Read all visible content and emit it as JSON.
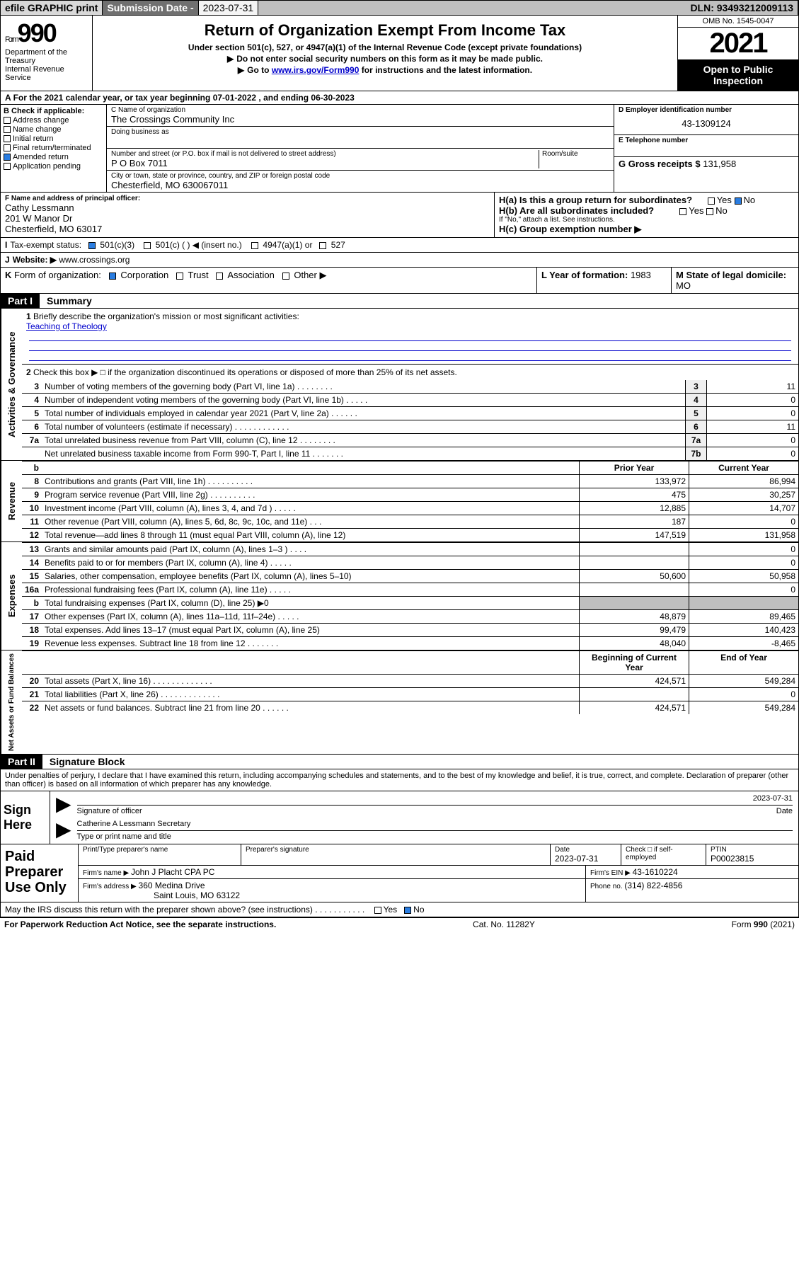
{
  "toolbar": {
    "efile": "efile GRAPHIC print",
    "subdate_label": "Submission Date - ",
    "subdate": "2023-07-31",
    "dln": "DLN: 93493212009113"
  },
  "header": {
    "form_word": "Form",
    "form_num": "990",
    "dept": "Department of the Treasury",
    "irs": "Internal Revenue Service",
    "title": "Return of Organization Exempt From Income Tax",
    "sub1": "Under section 501(c), 527, or 4947(a)(1) of the Internal Revenue Code (except private foundations)",
    "sub2": "Do not enter social security numbers on this form as it may be made public.",
    "sub3a": "Go to ",
    "sub3b": "www.irs.gov/Form990",
    "sub3c": " for instructions and the latest information.",
    "omb": "OMB No. 1545-0047",
    "year": "2021",
    "open": "Open to Public Inspection"
  },
  "period": {
    "a": "A",
    "text": " For the 2021 calendar year, or tax year beginning ",
    "begin": "07-01-2022",
    "mid": " , and ending ",
    "end": "06-30-2023"
  },
  "boxB": {
    "label": "B Check if applicable:",
    "items": [
      "Address change",
      "Name change",
      "Initial return",
      "Final return/terminated",
      "Amended return",
      "Application pending"
    ],
    "checked_index": 4
  },
  "boxC": {
    "label": "C Name of organization",
    "name": "The Crossings Community Inc",
    "dba_label": "Doing business as",
    "addr_label": "Number and street (or P.O. box if mail is not delivered to street address)",
    "room_label": "Room/suite",
    "addr": "P O Box 7011",
    "city_label": "City or town, state or province, country, and ZIP or foreign postal code",
    "city": "Chesterfield, MO  630067011"
  },
  "boxD": {
    "label": "D Employer identification number",
    "val": "43-1309124"
  },
  "boxE": {
    "label": "E Telephone number",
    "val": ""
  },
  "boxG": {
    "label": "G Gross receipts $ ",
    "val": "131,958"
  },
  "boxF": {
    "label": "F  Name and address of principal officer:",
    "name": "Cathy Lessmann",
    "addr1": "201 W Manor Dr",
    "addr2": "Chesterfield, MO  63017"
  },
  "boxH": {
    "a": "H(a)  Is this a group return for subordinates?",
    "b": "H(b)  Are all subordinates included?",
    "note": "If \"No,\" attach a list. See instructions.",
    "c": "H(c)  Group exemption number ▶",
    "yes": "Yes",
    "no": "No"
  },
  "boxI": {
    "lead": "I",
    "label": "Tax-exempt status:",
    "o1": "501(c)(3)",
    "o2": "501(c) (  )  ◀ (insert no.)",
    "o3": "4947(a)(1) or",
    "o4": "527"
  },
  "boxJ": {
    "lead": "J",
    "label": "Website: ▶ ",
    "val": "www.crossings.org"
  },
  "boxK": {
    "lead": "K",
    "label": "Form of organization:",
    "o1": "Corporation",
    "o2": "Trust",
    "o3": "Association",
    "o4": "Other ▶"
  },
  "boxL": {
    "label": "L Year of formation: ",
    "val": "1983"
  },
  "boxM": {
    "label": "M State of legal domicile: ",
    "val": "MO"
  },
  "part1": {
    "num": "Part I",
    "title": "Summary"
  },
  "briefly": {
    "num": "1",
    "label": "Briefly describe the organization's mission or most significant activities:",
    "text": "Teaching of Theology"
  },
  "discontinued": {
    "num": "2",
    "text": "Check this box ▶ □  if the organization discontinued its operations or disposed of more than 25% of its net assets."
  },
  "gov_lines": [
    {
      "n": "3",
      "t": "Number of voting members of the governing body (Part VI, line 1a)   .    .    .    .    .    .    .    .",
      "b": "3",
      "v": "11"
    },
    {
      "n": "4",
      "t": "Number of independent voting members of the governing body (Part VI, line 1b)    .    .    .    .    .",
      "b": "4",
      "v": "0"
    },
    {
      "n": "5",
      "t": "Total number of individuals employed in calendar year 2021 (Part V, line 2a)    .    .    .    .    .    .",
      "b": "5",
      "v": "0"
    },
    {
      "n": "6",
      "t": "Total number of volunteers (estimate if necessary)    .    .    .    .    .    .    .    .    .    .    .    .",
      "b": "6",
      "v": "11"
    },
    {
      "n": "7a",
      "t": "Total unrelated business revenue from Part VIII, column (C), line 12    .    .    .    .    .    .    .    .",
      "b": "7a",
      "v": "0"
    },
    {
      "n": "",
      "t": "Net unrelated business taxable income from Form 990-T, Part I, line 11    .    .    .    .    .    .    .",
      "b": "7b",
      "v": "0"
    }
  ],
  "col_hdr": {
    "b": "b",
    "prior": "Prior Year",
    "current": "Current Year"
  },
  "rev_lines": [
    {
      "n": "8",
      "t": "Contributions and grants (Part VIII, line 1h)    .    .    .    .    .    .    .    .    .    .",
      "p": "133,972",
      "c": "86,994"
    },
    {
      "n": "9",
      "t": "Program service revenue (Part VIII, line 2g)    .    .    .    .    .    .    .    .    .    .",
      "p": "475",
      "c": "30,257"
    },
    {
      "n": "10",
      "t": "Investment income (Part VIII, column (A), lines 3, 4, and 7d )    .    .    .    .    .",
      "p": "12,885",
      "c": "14,707"
    },
    {
      "n": "11",
      "t": "Other revenue (Part VIII, column (A), lines 5, 6d, 8c, 9c, 10c, and 11e)    .    .    .",
      "p": "187",
      "c": "0"
    },
    {
      "n": "12",
      "t": "Total revenue—add lines 8 through 11 (must equal Part VIII, column (A), line 12)",
      "p": "147,519",
      "c": "131,958"
    }
  ],
  "exp_lines": [
    {
      "n": "13",
      "t": "Grants and similar amounts paid (Part IX, column (A), lines 1–3 )    .    .    .    .",
      "p": "",
      "c": "0"
    },
    {
      "n": "14",
      "t": "Benefits paid to or for members (Part IX, column (A), line 4)    .    .    .    .    .",
      "p": "",
      "c": "0"
    },
    {
      "n": "15",
      "t": "Salaries, other compensation, employee benefits (Part IX, column (A), lines 5–10)",
      "p": "50,600",
      "c": "50,958"
    },
    {
      "n": "16a",
      "t": "Professional fundraising fees (Part IX, column (A), line 11e)    .    .    .    .    .",
      "p": "",
      "c": "0"
    },
    {
      "n": "b",
      "t": "Total fundraising expenses (Part IX, column (D), line 25) ▶0",
      "p": "__shade__",
      "c": "__shade__"
    },
    {
      "n": "17",
      "t": "Other expenses (Part IX, column (A), lines 11a–11d, 11f–24e)    .    .    .    .    .",
      "p": "48,879",
      "c": "89,465"
    },
    {
      "n": "18",
      "t": "Total expenses. Add lines 13–17 (must equal Part IX, column (A), line 25)",
      "p": "99,479",
      "c": "140,423"
    },
    {
      "n": "19",
      "t": "Revenue less expenses. Subtract line 18 from line 12    .    .    .    .    .    .    .",
      "p": "48,040",
      "c": "-8,465"
    }
  ],
  "na_hdr": {
    "prior": "Beginning of Current Year",
    "current": "End of Year"
  },
  "na_lines": [
    {
      "n": "20",
      "t": "Total assets (Part X, line 16)    .    .    .    .    .    .    .    .    .    .    .    .    .",
      "p": "424,571",
      "c": "549,284"
    },
    {
      "n": "21",
      "t": "Total liabilities (Part X, line 26)    .    .    .    .    .    .    .    .    .    .    .    .    .",
      "p": "",
      "c": "0"
    },
    {
      "n": "22",
      "t": "Net assets or fund balances. Subtract line 21 from line 20    .    .    .    .    .    .",
      "p": "424,571",
      "c": "549,284"
    }
  ],
  "vlabels": {
    "gov": "Activities & Governance",
    "rev": "Revenue",
    "exp": "Expenses",
    "na": "Net Assets or Fund Balances"
  },
  "part2": {
    "num": "Part II",
    "title": "Signature Block"
  },
  "penalties": "Under penalties of perjury, I declare that I have examined this return, including accompanying schedules and statements, and to the best of my knowledge and belief, it is true, correct, and complete. Declaration of preparer (other than officer) is based on all information of which preparer has any knowledge.",
  "sign": {
    "here": "Sign Here",
    "sig_officer": "Signature of officer",
    "date": "Date",
    "date_val": "2023-07-31",
    "name": "Catherine A Lessmann Secretary",
    "type_name": "Type or print name and title"
  },
  "prep": {
    "label": "Paid Preparer Use Only",
    "print_label": "Print/Type preparer's name",
    "sig_label": "Preparer's signature",
    "date_label": "Date",
    "date": "2023-07-31",
    "check_label": "Check □ if self-employed",
    "ptin_label": "PTIN",
    "ptin": "P00023815",
    "firm_name_label": "Firm's name    ▶ ",
    "firm_name": "John J Placht CPA PC",
    "firm_ein_label": "Firm's EIN ▶ ",
    "firm_ein": "43-1610224",
    "firm_addr_label": "Firm's address ▶ ",
    "firm_addr1": "360 Medina Drive",
    "firm_addr2": "Saint Louis, MO  63122",
    "phone_label": "Phone no. ",
    "phone": "(314) 822-4856"
  },
  "discuss": {
    "text": "May the IRS discuss this return with the preparer shown above? (see instructions)    .    .    .    .    .    .    .    .    .    .    .",
    "yes": "Yes",
    "no": "No"
  },
  "footer": {
    "left": "For Paperwork Reduction Act Notice, see the separate instructions.",
    "mid": "Cat. No. 11282Y",
    "right": "Form 990 (2021)"
  }
}
